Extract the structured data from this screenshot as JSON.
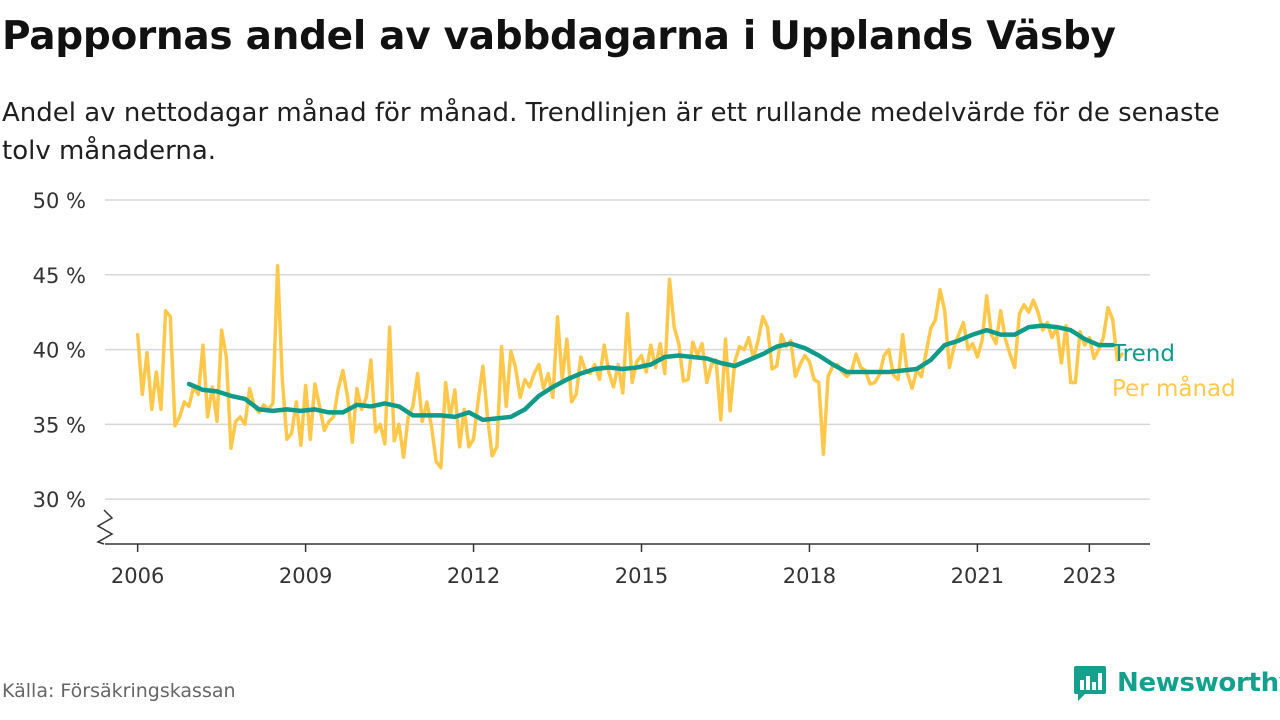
{
  "header": {
    "title": "Pappornas andel av vabbdagarna i Upplands Väsby",
    "subtitle": "Andel av nettodagar månad för månad. Trendlinjen är ett rullande medelvärde för de senaste tolv månaderna."
  },
  "footer": {
    "source": "Källa: Försäkringskassan",
    "brand": "Newsworthy"
  },
  "colors": {
    "trend": "#0f9a8a",
    "monthly": "#ffc84a",
    "grid": "#d7d7d7",
    "axis": "#333333",
    "brand": "#15a08d"
  },
  "chart_data": {
    "type": "line",
    "x_type": "date",
    "x_range": [
      "2005-06",
      "2024-02"
    ],
    "ylim": [
      27,
      50
    ],
    "y_ticks": [
      30,
      35,
      40,
      45,
      50
    ],
    "y_tick_labels": [
      "30 %",
      "35 %",
      "40 %",
      "45 %",
      "50 %"
    ],
    "x_ticks": [
      "2006-01",
      "2009-01",
      "2012-01",
      "2015-01",
      "2018-01",
      "2021-01",
      "2023-01"
    ],
    "x_tick_labels": [
      "2006",
      "2009",
      "2012",
      "2015",
      "2018",
      "2021",
      "2023"
    ],
    "axis_break": true,
    "grid": "horizontal",
    "legend": "inline-right",
    "series": [
      {
        "name": "Per månad",
        "points": [
          [
            "2006-01",
            41.0
          ],
          [
            "2006-02",
            37.0
          ],
          [
            "2006-03",
            39.8
          ],
          [
            "2006-04",
            36.0
          ],
          [
            "2006-05",
            38.5
          ],
          [
            "2006-06",
            36.0
          ],
          [
            "2006-07",
            42.6
          ],
          [
            "2006-08",
            42.2
          ],
          [
            "2006-09",
            34.9
          ],
          [
            "2006-10",
            35.5
          ],
          [
            "2006-11",
            36.5
          ],
          [
            "2006-12",
            36.2
          ],
          [
            "2007-01",
            37.5
          ],
          [
            "2007-02",
            37.0
          ],
          [
            "2007-03",
            40.3
          ],
          [
            "2007-04",
            35.5
          ],
          [
            "2007-05",
            37.5
          ],
          [
            "2007-06",
            35.2
          ],
          [
            "2007-07",
            41.3
          ],
          [
            "2007-08",
            39.5
          ],
          [
            "2007-09",
            33.4
          ],
          [
            "2007-10",
            35.2
          ],
          [
            "2007-11",
            35.5
          ],
          [
            "2007-12",
            35.0
          ],
          [
            "2008-01",
            37.4
          ],
          [
            "2008-02",
            36.2
          ],
          [
            "2008-03",
            35.8
          ],
          [
            "2008-04",
            36.3
          ],
          [
            "2008-05",
            36.0
          ],
          [
            "2008-06",
            36.4
          ],
          [
            "2008-07",
            45.6
          ],
          [
            "2008-08",
            38.0
          ],
          [
            "2008-09",
            34.0
          ],
          [
            "2008-10",
            34.4
          ],
          [
            "2008-11",
            36.5
          ],
          [
            "2008-12",
            33.6
          ],
          [
            "2009-01",
            37.6
          ],
          [
            "2009-02",
            34.0
          ],
          [
            "2009-03",
            37.7
          ],
          [
            "2009-04",
            36.2
          ],
          [
            "2009-05",
            34.6
          ],
          [
            "2009-06",
            35.2
          ],
          [
            "2009-07",
            35.5
          ],
          [
            "2009-08",
            37.4
          ],
          [
            "2009-09",
            38.6
          ],
          [
            "2009-10",
            36.8
          ],
          [
            "2009-11",
            33.8
          ],
          [
            "2009-12",
            37.4
          ],
          [
            "2010-01",
            36.0
          ],
          [
            "2010-02",
            36.8
          ],
          [
            "2010-03",
            39.3
          ],
          [
            "2010-04",
            34.5
          ],
          [
            "2010-05",
            35.0
          ],
          [
            "2010-06",
            33.7
          ],
          [
            "2010-07",
            41.5
          ],
          [
            "2010-08",
            33.9
          ],
          [
            "2010-09",
            35.0
          ],
          [
            "2010-10",
            32.8
          ],
          [
            "2010-11",
            35.5
          ],
          [
            "2010-12",
            36.2
          ],
          [
            "2011-01",
            38.4
          ],
          [
            "2011-02",
            35.2
          ],
          [
            "2011-03",
            36.5
          ],
          [
            "2011-04",
            34.8
          ],
          [
            "2011-05",
            32.5
          ],
          [
            "2011-06",
            32.1
          ],
          [
            "2011-07",
            37.8
          ],
          [
            "2011-08",
            35.5
          ],
          [
            "2011-09",
            37.3
          ],
          [
            "2011-10",
            33.5
          ],
          [
            "2011-11",
            36.0
          ],
          [
            "2011-12",
            33.5
          ],
          [
            "2012-01",
            34.0
          ],
          [
            "2012-02",
            36.6
          ],
          [
            "2012-03",
            38.9
          ],
          [
            "2012-04",
            35.5
          ],
          [
            "2012-05",
            32.9
          ],
          [
            "2012-06",
            33.5
          ],
          [
            "2012-07",
            40.2
          ],
          [
            "2012-08",
            36.2
          ],
          [
            "2012-09",
            39.9
          ],
          [
            "2012-10",
            38.8
          ],
          [
            "2012-11",
            36.8
          ],
          [
            "2012-12",
            38.0
          ],
          [
            "2013-01",
            37.5
          ],
          [
            "2013-02",
            38.4
          ],
          [
            "2013-03",
            39.0
          ],
          [
            "2013-04",
            37.4
          ],
          [
            "2013-05",
            38.4
          ],
          [
            "2013-06",
            36.8
          ],
          [
            "2013-07",
            42.2
          ],
          [
            "2013-08",
            38.0
          ],
          [
            "2013-09",
            40.7
          ],
          [
            "2013-10",
            36.5
          ],
          [
            "2013-11",
            37.0
          ],
          [
            "2013-12",
            39.5
          ],
          [
            "2014-01",
            38.6
          ],
          [
            "2014-02",
            38.4
          ],
          [
            "2014-03",
            39.0
          ],
          [
            "2014-04",
            38.0
          ],
          [
            "2014-05",
            40.3
          ],
          [
            "2014-06",
            38.5
          ],
          [
            "2014-07",
            37.5
          ],
          [
            "2014-08",
            39.0
          ],
          [
            "2014-09",
            37.1
          ],
          [
            "2014-10",
            42.4
          ],
          [
            "2014-11",
            37.8
          ],
          [
            "2014-12",
            39.2
          ],
          [
            "2015-01",
            39.6
          ],
          [
            "2015-02",
            38.5
          ],
          [
            "2015-03",
            40.3
          ],
          [
            "2015-04",
            38.8
          ],
          [
            "2015-05",
            40.4
          ],
          [
            "2015-06",
            38.4
          ],
          [
            "2015-07",
            44.7
          ],
          [
            "2015-08",
            41.5
          ],
          [
            "2015-09",
            40.4
          ],
          [
            "2015-10",
            37.9
          ],
          [
            "2015-11",
            38.0
          ],
          [
            "2015-12",
            40.5
          ],
          [
            "2016-01",
            39.6
          ],
          [
            "2016-02",
            40.4
          ],
          [
            "2016-03",
            37.8
          ],
          [
            "2016-04",
            39.0
          ],
          [
            "2016-05",
            39.3
          ],
          [
            "2016-06",
            35.3
          ],
          [
            "2016-07",
            40.7
          ],
          [
            "2016-08",
            35.9
          ],
          [
            "2016-09",
            39.2
          ],
          [
            "2016-10",
            40.2
          ],
          [
            "2016-11",
            40.0
          ],
          [
            "2016-12",
            40.8
          ],
          [
            "2017-01",
            39.4
          ],
          [
            "2017-02",
            40.6
          ],
          [
            "2017-03",
            42.2
          ],
          [
            "2017-04",
            41.5
          ],
          [
            "2017-05",
            38.7
          ],
          [
            "2017-06",
            38.9
          ],
          [
            "2017-07",
            41.0
          ],
          [
            "2017-08",
            40.2
          ],
          [
            "2017-09",
            40.6
          ],
          [
            "2017-10",
            38.2
          ],
          [
            "2017-11",
            39.0
          ],
          [
            "2017-12",
            39.6
          ],
          [
            "2018-01",
            39.2
          ],
          [
            "2018-02",
            38.0
          ],
          [
            "2018-03",
            37.8
          ],
          [
            "2018-04",
            33.0
          ],
          [
            "2018-05",
            38.2
          ],
          [
            "2018-06",
            38.9
          ],
          [
            "2018-07",
            39.0
          ],
          [
            "2018-08",
            38.5
          ],
          [
            "2018-09",
            38.2
          ],
          [
            "2018-10",
            38.5
          ],
          [
            "2018-11",
            39.7
          ],
          [
            "2018-12",
            38.8
          ],
          [
            "2019-01",
            38.6
          ],
          [
            "2019-02",
            37.7
          ],
          [
            "2019-03",
            37.8
          ],
          [
            "2019-04",
            38.3
          ],
          [
            "2019-05",
            39.6
          ],
          [
            "2019-06",
            40.0
          ],
          [
            "2019-07",
            38.3
          ],
          [
            "2019-08",
            38.0
          ],
          [
            "2019-09",
            41.0
          ],
          [
            "2019-10",
            38.4
          ],
          [
            "2019-11",
            37.4
          ],
          [
            "2019-12",
            38.6
          ],
          [
            "2020-01",
            38.2
          ],
          [
            "2020-02",
            39.8
          ],
          [
            "2020-03",
            41.4
          ],
          [
            "2020-04",
            42.0
          ],
          [
            "2020-05",
            44.0
          ],
          [
            "2020-06",
            42.6
          ],
          [
            "2020-07",
            38.8
          ],
          [
            "2020-08",
            40.2
          ],
          [
            "2020-09",
            41.0
          ],
          [
            "2020-10",
            41.8
          ],
          [
            "2020-11",
            40.0
          ],
          [
            "2020-12",
            40.4
          ],
          [
            "2021-01",
            39.5
          ],
          [
            "2021-02",
            40.6
          ],
          [
            "2021-03",
            43.6
          ],
          [
            "2021-04",
            41.0
          ],
          [
            "2021-05",
            40.4
          ],
          [
            "2021-06",
            42.6
          ],
          [
            "2021-07",
            40.7
          ],
          [
            "2021-08",
            39.7
          ],
          [
            "2021-09",
            38.8
          ],
          [
            "2021-10",
            42.4
          ],
          [
            "2021-11",
            43.0
          ],
          [
            "2021-12",
            42.5
          ],
          [
            "2022-01",
            43.3
          ],
          [
            "2022-02",
            42.5
          ],
          [
            "2022-03",
            41.3
          ],
          [
            "2022-04",
            41.8
          ],
          [
            "2022-05",
            40.8
          ],
          [
            "2022-06",
            41.5
          ],
          [
            "2022-07",
            39.1
          ],
          [
            "2022-08",
            41.6
          ],
          [
            "2022-09",
            37.8
          ],
          [
            "2022-10",
            37.8
          ],
          [
            "2022-11",
            41.2
          ],
          [
            "2022-12",
            40.3
          ],
          [
            "2023-01",
            40.8
          ],
          [
            "2023-02",
            39.4
          ],
          [
            "2023-03",
            40.0
          ],
          [
            "2023-04",
            40.8
          ],
          [
            "2023-05",
            42.8
          ],
          [
            "2023-06",
            42.0
          ],
          [
            "2023-07",
            39.3
          ],
          [
            "2023-08",
            39.7
          ]
        ]
      },
      {
        "name": "Trend",
        "points": [
          [
            "2006-12",
            37.7
          ],
          [
            "2007-03",
            37.3
          ],
          [
            "2007-06",
            37.2
          ],
          [
            "2007-09",
            36.9
          ],
          [
            "2007-12",
            36.7
          ],
          [
            "2008-03",
            36.0
          ],
          [
            "2008-06",
            35.9
          ],
          [
            "2008-09",
            36.0
          ],
          [
            "2008-12",
            35.9
          ],
          [
            "2009-03",
            36.0
          ],
          [
            "2009-06",
            35.8
          ],
          [
            "2009-09",
            35.8
          ],
          [
            "2009-12",
            36.3
          ],
          [
            "2010-03",
            36.2
          ],
          [
            "2010-06",
            36.4
          ],
          [
            "2010-09",
            36.2
          ],
          [
            "2010-12",
            35.6
          ],
          [
            "2011-03",
            35.6
          ],
          [
            "2011-06",
            35.6
          ],
          [
            "2011-09",
            35.5
          ],
          [
            "2011-12",
            35.8
          ],
          [
            "2012-03",
            35.3
          ],
          [
            "2012-06",
            35.4
          ],
          [
            "2012-09",
            35.5
          ],
          [
            "2012-12",
            36.0
          ],
          [
            "2013-03",
            36.9
          ],
          [
            "2013-06",
            37.5
          ],
          [
            "2013-09",
            38.0
          ],
          [
            "2013-12",
            38.4
          ],
          [
            "2014-03",
            38.7
          ],
          [
            "2014-06",
            38.8
          ],
          [
            "2014-09",
            38.7
          ],
          [
            "2014-12",
            38.8
          ],
          [
            "2015-03",
            39.0
          ],
          [
            "2015-06",
            39.5
          ],
          [
            "2015-09",
            39.6
          ],
          [
            "2015-12",
            39.5
          ],
          [
            "2016-03",
            39.4
          ],
          [
            "2016-06",
            39.1
          ],
          [
            "2016-09",
            38.9
          ],
          [
            "2016-12",
            39.3
          ],
          [
            "2017-03",
            39.7
          ],
          [
            "2017-06",
            40.2
          ],
          [
            "2017-09",
            40.4
          ],
          [
            "2017-12",
            40.1
          ],
          [
            "2018-03",
            39.6
          ],
          [
            "2018-06",
            39.0
          ],
          [
            "2018-09",
            38.5
          ],
          [
            "2018-12",
            38.5
          ],
          [
            "2019-03",
            38.5
          ],
          [
            "2019-06",
            38.5
          ],
          [
            "2019-09",
            38.6
          ],
          [
            "2019-12",
            38.7
          ],
          [
            "2020-03",
            39.3
          ],
          [
            "2020-06",
            40.3
          ],
          [
            "2020-09",
            40.6
          ],
          [
            "2020-12",
            41.0
          ],
          [
            "2021-03",
            41.3
          ],
          [
            "2021-06",
            41.0
          ],
          [
            "2021-09",
            41.0
          ],
          [
            "2021-12",
            41.5
          ],
          [
            "2022-03",
            41.6
          ],
          [
            "2022-06",
            41.5
          ],
          [
            "2022-09",
            41.3
          ],
          [
            "2022-12",
            40.7
          ],
          [
            "2023-03",
            40.3
          ],
          [
            "2023-06",
            40.3
          ]
        ]
      }
    ]
  }
}
